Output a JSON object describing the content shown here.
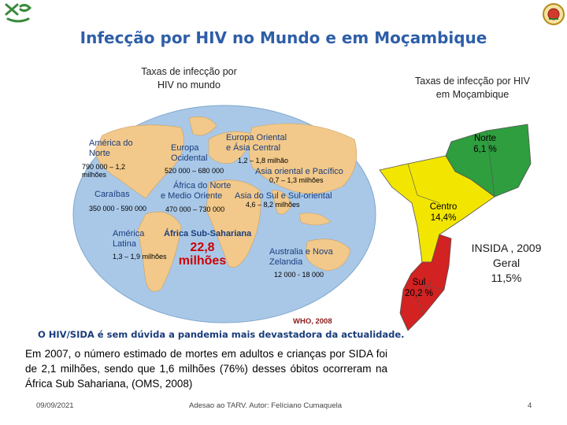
{
  "header": {
    "title": "Infecção por HIV no Mundo e em Moçambique",
    "world_caption_line1": "Taxas de infecção por",
    "world_caption_line2": "HIV no mundo",
    "moz_caption_line1": "Taxas de infecção por HIV",
    "moz_caption_line2": "em Moçambique"
  },
  "world_regions": {
    "north_america": {
      "name_line1": "América do",
      "name_line2": "Norte",
      "range_line1": "790 000 – 1,2",
      "range_line2": "milhões"
    },
    "caribbean": {
      "name": "Caraíbas",
      "range": "350 000 - 590 000"
    },
    "latin_america": {
      "name_line1": "América",
      "name_line2": "Latina",
      "range": "1,3 – 1,9 milhões"
    },
    "western_europe": {
      "name_line1": "Europa",
      "name_line2": "Ocidental",
      "range": "520 000 – 680 000"
    },
    "eastern_europe": {
      "name_line1": "Europa Oriental",
      "name_line2": "e Ásia Central",
      "range": "1,2 – 1,8 milhão"
    },
    "east_asia": {
      "name": "Asia oriental e Pacífico",
      "range": "0,7 – 1,3 milhões"
    },
    "north_africa": {
      "name_line1": "África do Norte",
      "name_line2": "e Medio Oriente",
      "range": "470 000 – 730 000"
    },
    "south_asia": {
      "name": "Asia do Sul e Sul-oriental",
      "range": "4,6 – 8,2 milhões"
    },
    "sub_saharan": {
      "name": "África Sub-Sahariana",
      "value_line1": "22,8",
      "value_line2": "milhões"
    },
    "australia": {
      "name_line1": "Australia e Nova",
      "name_line2": "Zelandia",
      "range": "12 000 - 18 000"
    }
  },
  "who_source": "WHO, 2008",
  "mozambique": {
    "north": {
      "name": "Norte",
      "rate": "6,1 %"
    },
    "centre": {
      "name": "Centro",
      "rate": "14,4%"
    },
    "south": {
      "name": "Sul",
      "rate": "20,2 %"
    },
    "insida_line1": "INSIDA , 2009",
    "insida_line2": "Geral",
    "insida_line3": "11,5%"
  },
  "statement": "O HIV/SIDA é sem dúvida a pandemia mais devastadora da actualidade.",
  "paragraph": "Em 2007, o número estimado de mortes em adultos e crianças por SIDA foi de 2,1 milhões, sendo que 1,6 milhões (76%) desses óbitos ocorreram na África Sub Sahariana, (OMS, 2008)",
  "footer": {
    "date": "09/09/2021",
    "center_text": "Adesao ao TARV. Autor: Felíciano Cumaquela",
    "page": "4"
  },
  "colors": {
    "title": "#2e5ea8",
    "ocean": "#a9c8e8",
    "land": "#f2c98a",
    "north": "#2e9e3e",
    "centre": "#f2e600",
    "south": "#d22222"
  }
}
